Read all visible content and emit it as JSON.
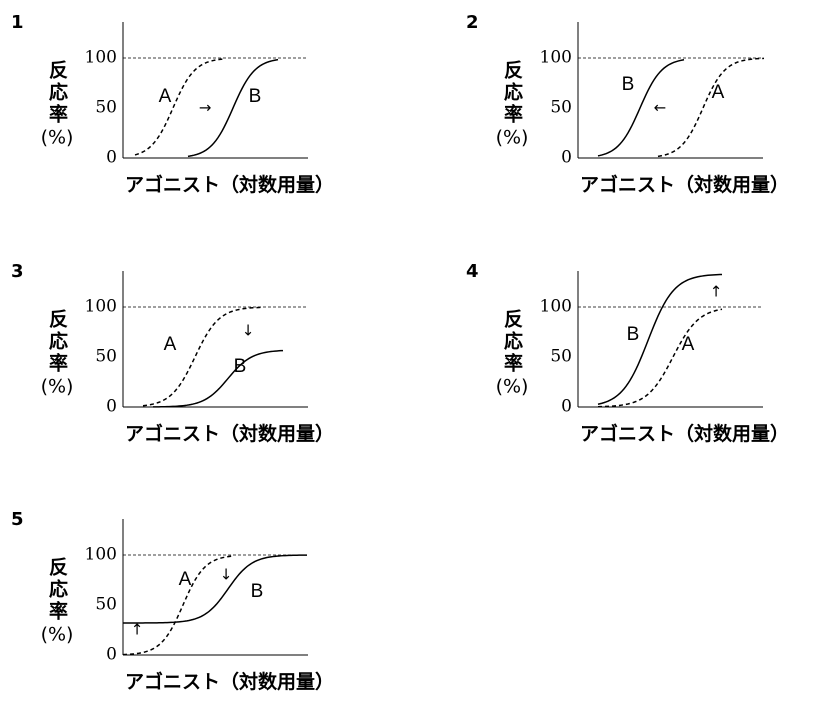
{
  "panels": [
    {
      "number": "1",
      "y_label": "反応率",
      "y_unit": "(%)",
      "ticks": [
        100,
        50,
        0
      ],
      "x_label": "アゴニスト（対数用量）",
      "curve_labels": [
        "A",
        "B"
      ],
      "arrows": [
        "→"
      ]
    },
    {
      "number": "2",
      "y_label": "反応率",
      "y_unit": "(%)",
      "ticks": [
        100,
        50,
        0
      ],
      "x_label": "アゴニスト（対数用量）",
      "curve_labels": [
        "A",
        "B"
      ],
      "arrows": [
        "←"
      ]
    },
    {
      "number": "3",
      "y_label": "反応率",
      "y_unit": "(%)",
      "ticks": [
        100,
        50,
        0
      ],
      "x_label": "アゴニスト（対数用量）",
      "curve_labels": [
        "A",
        "B"
      ],
      "arrows": [
        "↓"
      ]
    },
    {
      "number": "4",
      "y_label": "反応率",
      "y_unit": "(%)",
      "ticks": [
        100,
        50,
        0
      ],
      "x_label": "アゴニスト（対数用量）",
      "curve_labels": [
        "A",
        "B"
      ],
      "arrows": [
        "↑"
      ]
    },
    {
      "number": "5",
      "y_label": "反応率",
      "y_unit": "(%)",
      "ticks": [
        100,
        50,
        0
      ],
      "x_label": "アゴニスト（対数用量）",
      "curve_labels": [
        "A",
        "B"
      ],
      "arrows": [
        "↑",
        "↓"
      ]
    }
  ]
}
